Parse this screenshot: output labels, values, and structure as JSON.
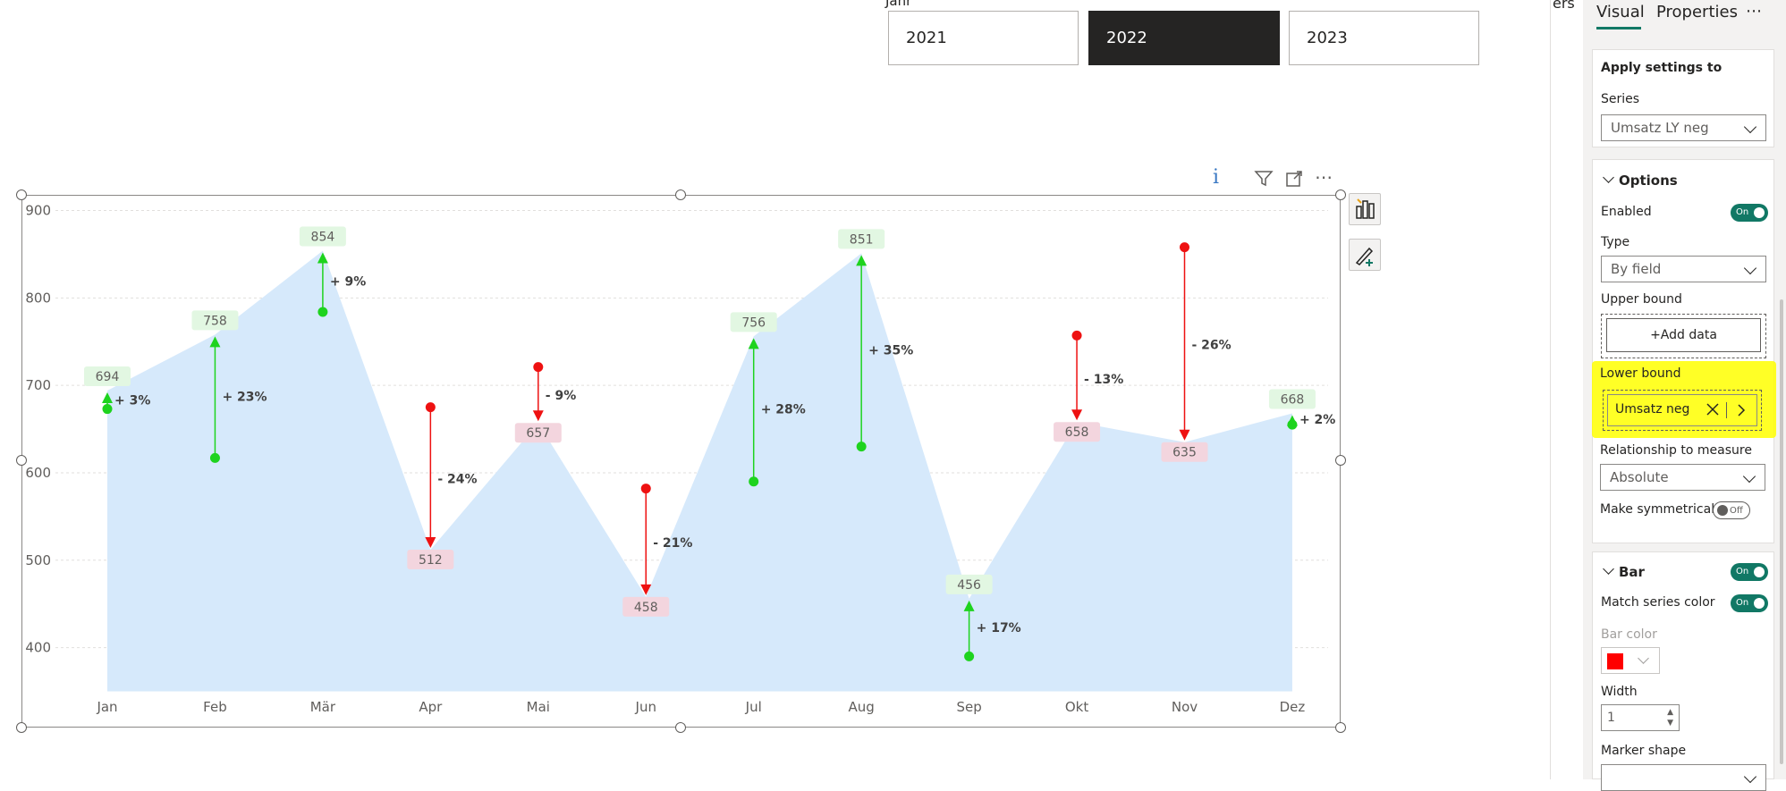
{
  "slicer": {
    "title_partial": "Jahr",
    "options": [
      "2021",
      "2022",
      "2023"
    ],
    "selected": "2022"
  },
  "visual_header": {
    "info": "i",
    "icons": [
      "filter-icon",
      "focus-mode-icon",
      "more-options-icon"
    ],
    "more": "⋯"
  },
  "chart_data": {
    "type": "area",
    "categories": [
      "Jan",
      "Feb",
      "Mär",
      "Apr",
      "Mai",
      "Jun",
      "Jul",
      "Aug",
      "Sep",
      "Okt",
      "Nov",
      "Dez"
    ],
    "series": [
      {
        "values": [
          694,
          758,
          854,
          512,
          657,
          458,
          756,
          851,
          456,
          658,
          635,
          668
        ]
      }
    ],
    "reference_values": [
      673,
      617,
      784,
      675,
      721,
      582,
      590,
      630,
      390,
      757,
      858,
      655
    ],
    "labels": [
      "694",
      "758",
      "854",
      "512",
      "657",
      "458",
      "756",
      "851",
      "456",
      "658",
      "635",
      "668"
    ],
    "deltas": [
      "+ 3%",
      "+ 23%",
      "+ 9%",
      "- 24%",
      "- 9%",
      "- 21%",
      "+ 28%",
      "+ 35%",
      "+ 17%",
      "- 13%",
      "- 26%",
      "+ 2%"
    ],
    "direction": [
      "up",
      "up",
      "up",
      "down",
      "down",
      "down",
      "up",
      "up",
      "up",
      "down",
      "down",
      "up"
    ],
    "y_ticks": [
      "900",
      "800",
      "700",
      "600",
      "500",
      "400"
    ],
    "ylim": [
      350,
      900
    ],
    "grid": true,
    "colors": {
      "area": "#d6e9fb",
      "positive": "#1ed31e",
      "negative": "#ee1111",
      "pos_label_bg": "#e2f7e2",
      "neg_label_bg": "#f3d5de"
    }
  },
  "pane": {
    "title_partial": "ers",
    "tab_visual": "Visual",
    "tab_properties": "Properties",
    "more": "⋯",
    "apply_settings_to": "Apply settings to",
    "series_label": "Series",
    "series_value": "Umsatz LY neg",
    "options_title": "Options",
    "enabled_label": "Enabled",
    "enabled_state": "On",
    "type_label": "Type",
    "type_value": "By field",
    "upper_bound_label": "Upper bound",
    "add_data": "+Add data",
    "lower_bound_label": "Lower bound",
    "lower_bound_field": "Umsatz neg",
    "relationship_label": "Relationship to measure",
    "relationship_value": "Absolute",
    "symmetrical_label": "Make symmetrical",
    "symmetrical_state": "Off",
    "bar_title": "Bar",
    "bar_state": "On",
    "match_color_label": "Match series color",
    "match_color_state": "On",
    "bar_color_label": "Bar color",
    "bar_color": "#ff0000",
    "width_label": "Width",
    "width_value": "1",
    "marker_shape_label": "Marker shape"
  }
}
